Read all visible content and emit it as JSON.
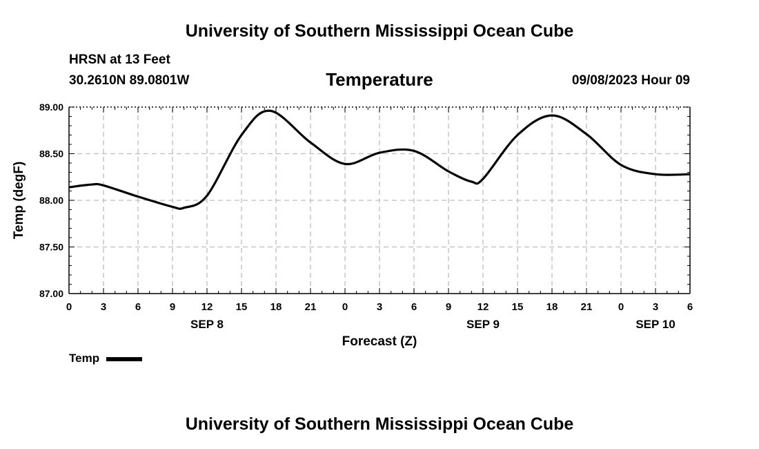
{
  "header": {
    "title_top": "University of Southern Mississippi Ocean Cube",
    "title_bottom": "University of Southern Mississippi Ocean Cube",
    "station": "HRSN at 13 Feet",
    "location": "30.2610N  89.0801W",
    "parameter": "Temperature",
    "datetime": "09/08/2023 Hour 09"
  },
  "legend": {
    "label": "Temp"
  },
  "chart_data": {
    "type": "line",
    "title": "Temperature",
    "xlabel": "Forecast (Z)",
    "ylabel": "Temp (degF)",
    "xlim": [
      0,
      54
    ],
    "ylim": [
      87.0,
      89.0
    ],
    "y_ticks": [
      "87.00",
      "87.50",
      "88.00",
      "88.50",
      "89.00"
    ],
    "x_ticks": [
      "0",
      "3",
      "6",
      "9",
      "12",
      "15",
      "18",
      "21",
      "0",
      "3",
      "6",
      "9",
      "12",
      "15",
      "18",
      "21",
      "0",
      "3",
      "6"
    ],
    "date_labels": [
      {
        "label": "SEP 8",
        "hour": 12
      },
      {
        "label": "SEP 9",
        "hour": 36
      },
      {
        "label": "SEP 10",
        "hour": 51
      }
    ],
    "grid": true,
    "series": [
      {
        "name": "Temp",
        "x": [
          0,
          2,
          3,
          6,
          9,
          10,
          12,
          15,
          17.5,
          21,
          24,
          27,
          30,
          33,
          35,
          36,
          39,
          42,
          45,
          48,
          51,
          54
        ],
        "values": [
          88.14,
          88.17,
          88.16,
          88.04,
          87.93,
          87.92,
          88.05,
          88.7,
          88.96,
          88.62,
          88.39,
          88.51,
          88.53,
          88.31,
          88.2,
          88.23,
          88.7,
          88.91,
          88.71,
          88.38,
          88.28,
          88.28
        ]
      }
    ]
  }
}
